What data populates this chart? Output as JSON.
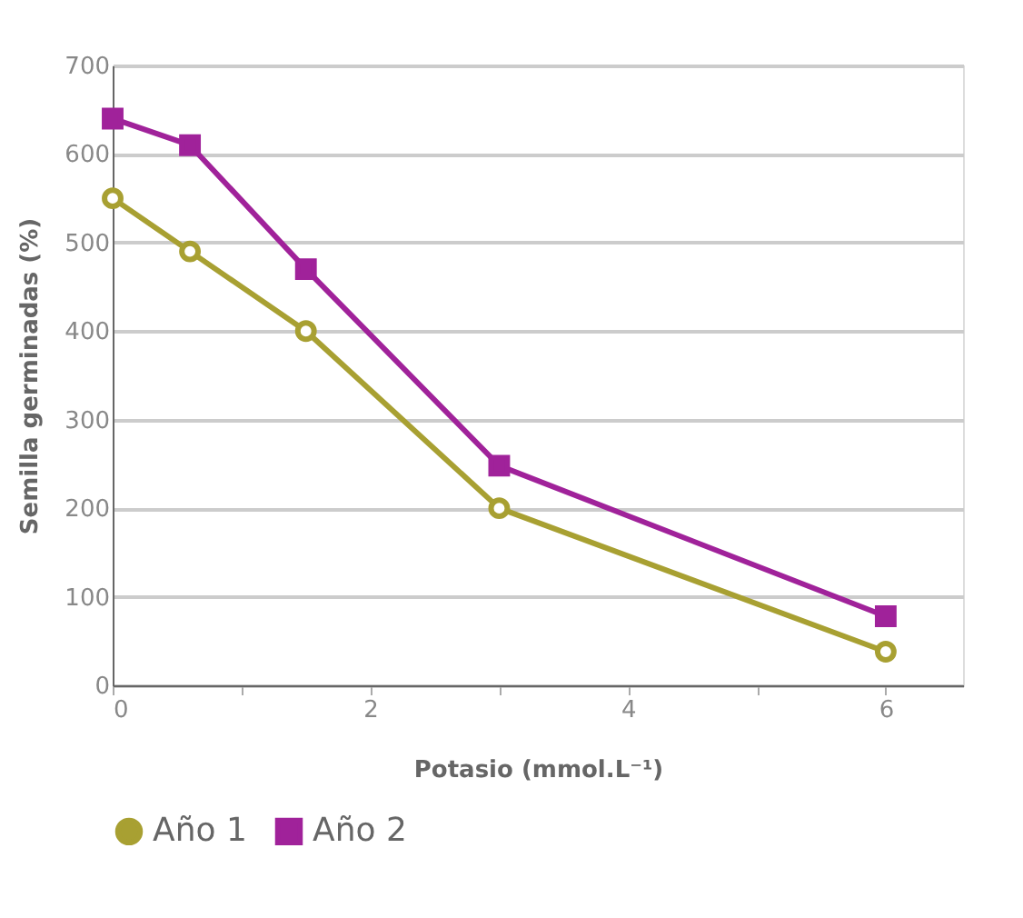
{
  "chart_data": {
    "type": "line",
    "xlabel": "Potasio (mmol.L⁻¹)",
    "ylabel": "Semilla germinadas (%)",
    "xlim": [
      0,
      6.6
    ],
    "xticks": [
      0,
      {
        "value": 1,
        "label": null
      },
      2,
      {
        "value": 3,
        "label": null
      },
      4,
      {
        "value": 5,
        "label": null
      },
      6
    ],
    "ylim": [
      0,
      700
    ],
    "yticks": [
      0,
      100,
      200,
      300,
      400,
      500,
      600,
      700
    ],
    "grid": "y",
    "legend": "bottom",
    "series": [
      {
        "name": "Año 1",
        "color": "#a8a032",
        "marker": "circle",
        "x": [
          0,
          0.6,
          1.5,
          3,
          6
        ],
        "values": [
          550,
          490,
          400,
          200,
          38
        ]
      },
      {
        "name": "Año 2",
        "color": "#a0229a",
        "marker": "square",
        "x": [
          0,
          0.6,
          1.5,
          3,
          6
        ],
        "values": [
          640,
          610,
          470,
          248,
          78
        ]
      }
    ]
  }
}
